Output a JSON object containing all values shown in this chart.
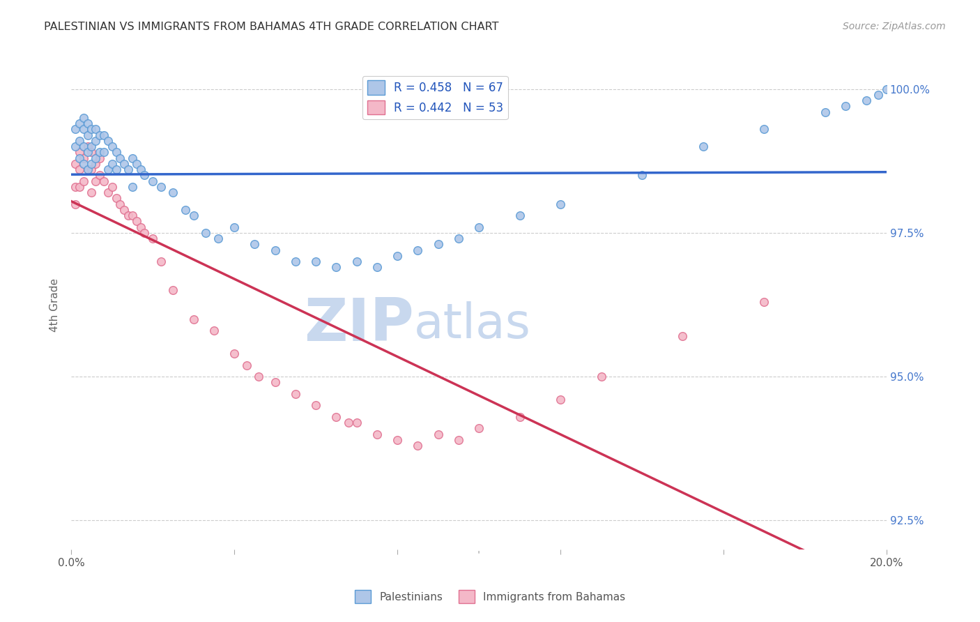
{
  "title": "PALESTINIAN VS IMMIGRANTS FROM BAHAMAS 4TH GRADE CORRELATION CHART",
  "source": "Source: ZipAtlas.com",
  "ylabel": "4th Grade",
  "xlim": [
    0.0,
    0.2
  ],
  "ylim": [
    0.92,
    1.005
  ],
  "yticks": [
    0.925,
    0.95,
    0.975,
    1.0
  ],
  "yticklabels": [
    "92.5%",
    "95.0%",
    "97.5%",
    "100.0%"
  ],
  "legend_r_blue": "R = 0.458",
  "legend_n_blue": "N = 67",
  "legend_r_pink": "R = 0.442",
  "legend_n_pink": "N = 53",
  "blue_fill": "#aec6e8",
  "blue_edge": "#5b9bd5",
  "pink_fill": "#f4b8c8",
  "pink_edge": "#e07090",
  "blue_line": "#3366cc",
  "pink_line": "#cc3355",
  "scatter_size": 70,
  "blue_x": [
    0.001,
    0.001,
    0.002,
    0.002,
    0.002,
    0.003,
    0.003,
    0.003,
    0.003,
    0.004,
    0.004,
    0.004,
    0.004,
    0.005,
    0.005,
    0.005,
    0.006,
    0.006,
    0.006,
    0.007,
    0.007,
    0.008,
    0.008,
    0.009,
    0.009,
    0.01,
    0.01,
    0.011,
    0.011,
    0.012,
    0.013,
    0.014,
    0.015,
    0.015,
    0.016,
    0.017,
    0.018,
    0.02,
    0.022,
    0.025,
    0.028,
    0.03,
    0.033,
    0.036,
    0.04,
    0.045,
    0.05,
    0.055,
    0.06,
    0.065,
    0.07,
    0.075,
    0.08,
    0.085,
    0.09,
    0.095,
    0.1,
    0.11,
    0.12,
    0.14,
    0.155,
    0.17,
    0.185,
    0.19,
    0.195,
    0.198,
    0.2
  ],
  "blue_y": [
    0.993,
    0.99,
    0.994,
    0.991,
    0.988,
    0.995,
    0.993,
    0.99,
    0.987,
    0.994,
    0.992,
    0.989,
    0.986,
    0.993,
    0.99,
    0.987,
    0.993,
    0.991,
    0.988,
    0.992,
    0.989,
    0.992,
    0.989,
    0.991,
    0.986,
    0.99,
    0.987,
    0.989,
    0.986,
    0.988,
    0.987,
    0.986,
    0.988,
    0.983,
    0.987,
    0.986,
    0.985,
    0.984,
    0.983,
    0.982,
    0.979,
    0.978,
    0.975,
    0.974,
    0.976,
    0.973,
    0.972,
    0.97,
    0.97,
    0.969,
    0.97,
    0.969,
    0.971,
    0.972,
    0.973,
    0.974,
    0.976,
    0.978,
    0.98,
    0.985,
    0.99,
    0.993,
    0.996,
    0.997,
    0.998,
    0.999,
    1.0
  ],
  "pink_x": [
    0.001,
    0.001,
    0.001,
    0.002,
    0.002,
    0.002,
    0.003,
    0.003,
    0.004,
    0.004,
    0.005,
    0.005,
    0.005,
    0.006,
    0.006,
    0.007,
    0.007,
    0.008,
    0.009,
    0.01,
    0.011,
    0.012,
    0.013,
    0.014,
    0.015,
    0.016,
    0.017,
    0.018,
    0.02,
    0.022,
    0.025,
    0.03,
    0.035,
    0.04,
    0.043,
    0.046,
    0.05,
    0.055,
    0.06,
    0.065,
    0.068,
    0.07,
    0.075,
    0.08,
    0.085,
    0.09,
    0.095,
    0.1,
    0.11,
    0.12,
    0.13,
    0.15,
    0.17
  ],
  "pink_y": [
    0.987,
    0.983,
    0.98,
    0.989,
    0.986,
    0.983,
    0.988,
    0.984,
    0.99,
    0.986,
    0.989,
    0.986,
    0.982,
    0.987,
    0.984,
    0.988,
    0.985,
    0.984,
    0.982,
    0.983,
    0.981,
    0.98,
    0.979,
    0.978,
    0.978,
    0.977,
    0.976,
    0.975,
    0.974,
    0.97,
    0.965,
    0.96,
    0.958,
    0.954,
    0.952,
    0.95,
    0.949,
    0.947,
    0.945,
    0.943,
    0.942,
    0.942,
    0.94,
    0.939,
    0.938,
    0.94,
    0.939,
    0.941,
    0.943,
    0.946,
    0.95,
    0.957,
    0.963
  ],
  "watermark_zip": "ZIP",
  "watermark_atlas": "atlas",
  "watermark_color_zip": "#c8d8ee",
  "watermark_color_atlas": "#c8d8ee",
  "background_color": "#ffffff",
  "grid_color": "#cccccc",
  "right_tick_color": "#4477cc"
}
